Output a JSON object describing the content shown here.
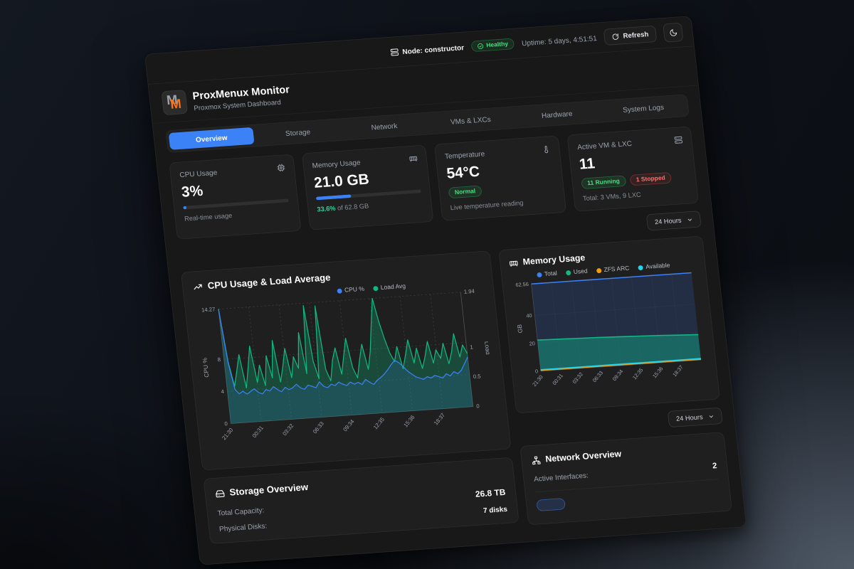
{
  "topbar": {
    "node_label": "Node: constructor",
    "health": "Healthy",
    "uptime": "Uptime: 5 days, 4:51:51",
    "refresh_label": "Refresh"
  },
  "header": {
    "title": "ProxMenux Monitor",
    "subtitle": "Proxmox System Dashboard"
  },
  "active_tab": "Overview",
  "tabs": [
    "Overview",
    "Storage",
    "Network",
    "VMs & LXCs",
    "Hardware",
    "System Logs"
  ],
  "stats": {
    "cpu": {
      "label": "CPU Usage",
      "value": "3%",
      "percent": 3,
      "sub": "Real-time usage"
    },
    "memory": {
      "label": "Memory Usage",
      "value": "21.0 GB",
      "percent": 33.6,
      "percent_text": "33.6%",
      "of_text": "of 62.8 GB"
    },
    "temperature": {
      "label": "Temperature",
      "value": "54°C",
      "status": "Normal",
      "sub": "Live temperature reading"
    },
    "vms": {
      "label": "Active VM & LXC",
      "value": "11",
      "running": "11 Running",
      "stopped": "1 Stopped",
      "total": "Total: 3 VMs, 9 LXC"
    }
  },
  "range_selector": {
    "label": "24 Hours"
  },
  "chart_data": [
    {
      "type": "line",
      "title": "CPU Usage & Load Average",
      "x_ticks": [
        "21:30",
        "00:31",
        "03:32",
        "06:33",
        "09:34",
        "12:35",
        "15:36",
        "18:37"
      ],
      "y_left": {
        "label": "CPU %",
        "ticks": [
          0,
          4,
          8,
          14.27
        ],
        "max": 14.27
      },
      "y_right": {
        "label": "Load",
        "ticks": [
          0,
          0.5,
          1,
          1.94
        ],
        "max": 1.94
      },
      "grid": "dashed",
      "legend_position": "top-center",
      "series": [
        {
          "name": "CPU %",
          "axis": "left",
          "color": "#3b82f6",
          "fill": "rgba(59,130,246,0.15)",
          "values": [
            14.27,
            7.5,
            4.2,
            3.6,
            3.9,
            3.5,
            3.8,
            4.1,
            3.6,
            3.4,
            3.9,
            3.7,
            4.2,
            3.8,
            3.5,
            4.0,
            3.7,
            3.9,
            4.3,
            3.8,
            3.6,
            4.1,
            3.9,
            3.7,
            4.4,
            3.8,
            3.6,
            4.0,
            3.8,
            4.2,
            3.9,
            3.7,
            4.1,
            3.8,
            4.0,
            3.7,
            4.3,
            3.9,
            3.6,
            4.1,
            4.4,
            4.8,
            5.3,
            5.9,
            6.4,
            6.1,
            5.6,
            5.0,
            4.6,
            4.2,
            4.0,
            3.8,
            4.1,
            3.9,
            4.2,
            4.0,
            3.8,
            4.3,
            4.0,
            4.5,
            4.2,
            4.6,
            5.4,
            6.2
          ]
        },
        {
          "name": "Load Avg",
          "axis": "right",
          "color": "#10b981",
          "fill": "rgba(16,185,129,0.28)",
          "values": [
            1.94,
            1.05,
            0.62,
            0.88,
            1.15,
            0.58,
            0.92,
            1.28,
            0.66,
            0.95,
            0.6,
            1.1,
            0.72,
            1.35,
            0.64,
            0.9,
            1.2,
            0.7,
            1.05,
            0.85,
            1.45,
            0.75,
            1.9,
            0.95,
            0.65,
            1.88,
            0.8,
            0.6,
            0.95,
            1.15,
            0.7,
            1.0,
            1.3,
            0.8,
            0.62,
            0.92,
            1.18,
            0.75,
            1.05,
            1.5,
            1.94,
            1.55,
            1.25,
            1.0,
            0.85,
            1.1,
            0.72,
            0.95,
            1.2,
            0.8,
            1.05,
            0.7,
            0.9,
            1.15,
            0.78,
            1.0,
            0.85,
            1.1,
            0.75,
            0.95,
            1.25,
            0.85,
            1.05,
            0.9
          ]
        }
      ]
    },
    {
      "type": "area",
      "title": "Memory Usage",
      "x_ticks": [
        "21:30",
        "00:31",
        "03:32",
        "06:33",
        "09:34",
        "12:35",
        "15:36",
        "18:37"
      ],
      "y": {
        "label": "GB",
        "ticks": [
          0,
          20,
          40,
          62.56
        ],
        "max": 62.56
      },
      "grid": "solid",
      "legend_position": "top-center",
      "series": [
        {
          "name": "Total",
          "color": "#3b82f6",
          "fill": "rgba(38,58,100,0.55)",
          "values": [
            62.56,
            62.56,
            62.56,
            62.56,
            62.56,
            62.56,
            62.56,
            62.56,
            62.56
          ]
        },
        {
          "name": "Used",
          "color": "#10b981",
          "fill": "rgba(18,158,130,0.5)",
          "values": [
            22.3,
            21.9,
            21.5,
            21.1,
            20.6,
            20.1,
            19.5,
            18.8,
            18.2
          ]
        },
        {
          "name": "ZFS ARC",
          "color": "#f59e0b",
          "fill": "none",
          "values": [
            0.5,
            0.5,
            0.5,
            0.5,
            0.5,
            0.5,
            0.5,
            0.5,
            0.5
          ]
        },
        {
          "name": "Available",
          "color": "#22d3ee",
          "fill": "none",
          "values": [
            1.0,
            1.0,
            1.0,
            1.0,
            1.0,
            1.0,
            1.0,
            1.0,
            1.0
          ]
        }
      ]
    }
  ],
  "storage": {
    "title": "Storage Overview",
    "rows": [
      {
        "label": "Total Capacity:",
        "value": "26.8 TB"
      },
      {
        "label": "Physical Disks:",
        "value": "7 disks"
      }
    ]
  },
  "network": {
    "title": "Network Overview",
    "rows": [
      {
        "label": "Active Interfaces:",
        "value": "2"
      }
    ]
  },
  "colors": {
    "accent_blue": "#3b82f6",
    "green": "#10b981",
    "orange": "#f59e0b",
    "cyan": "#22d3ee",
    "red": "#ef4444",
    "logo_orange": "#f97316"
  }
}
